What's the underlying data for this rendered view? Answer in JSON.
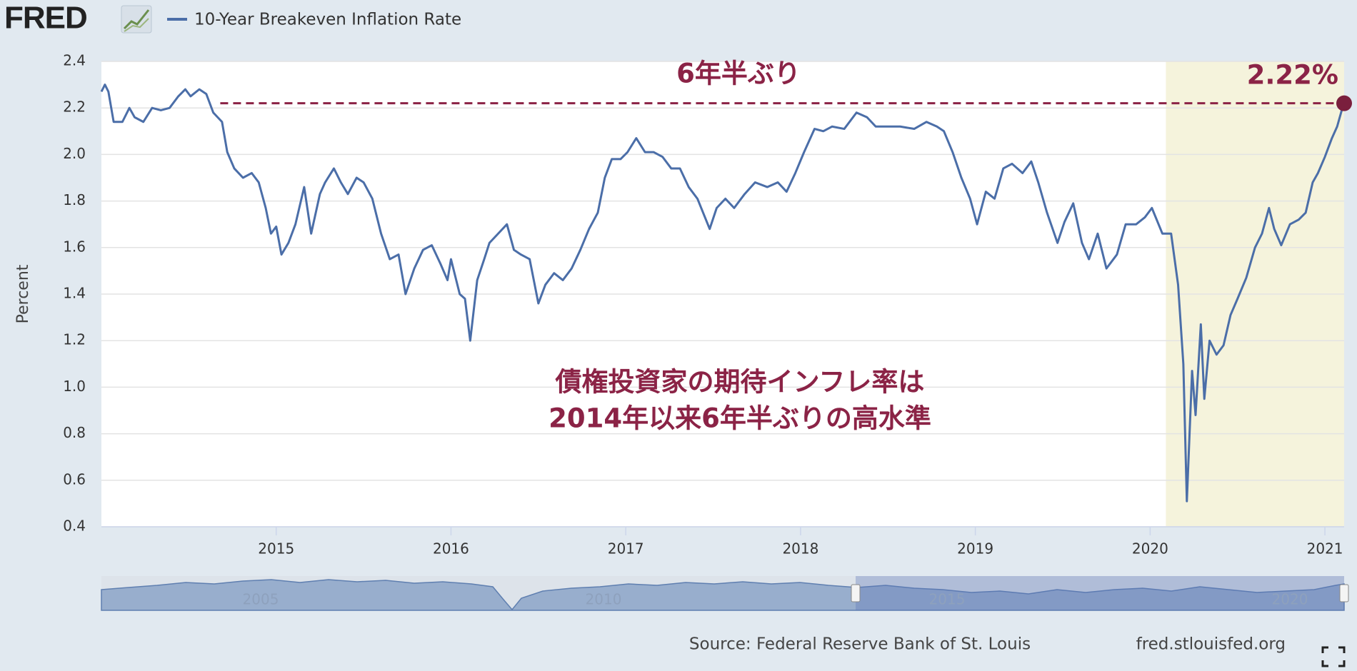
{
  "chart_data": {
    "type": "line",
    "logo": "FRED",
    "y_label": "Percent",
    "source": "Source: Federal Reserve Bank of St. Louis",
    "site": "fred.stlouisfed.org",
    "annotations": [
      "6年半ぶり",
      "2.22%",
      "債権投資家の期待インフレ率は",
      "2014年以来6年半ぶりの高水準"
    ],
    "reference_line": {
      "value": 2.22,
      "from": 2014.68,
      "color": "#8b2346"
    },
    "shaded_range": [
      2020.09,
      2021.11
    ],
    "shade_color": "#f5f3dc",
    "navigator_labels": [
      "2005",
      "2010",
      "2015",
      "2020"
    ],
    "xlim": [
      2014.0,
      2021.11
    ],
    "xticks": [
      2015,
      2016,
      2017,
      2018,
      2019,
      2020,
      2021
    ],
    "ylim": [
      0.4,
      2.4
    ],
    "yticks": [
      0.4,
      0.6,
      0.8,
      {
        "value": 1,
        "label": "1.0"
      },
      1.2,
      1.4,
      1.6,
      1.8,
      {
        "value": 2,
        "label": "2.0"
      },
      2.2,
      2.4
    ],
    "grid": true,
    "x": [
      2014.0,
      2014.02,
      2014.04,
      2014.07,
      2014.12,
      2014.16,
      2014.19,
      2014.24,
      2014.29,
      2014.34,
      2014.39,
      2014.44,
      2014.48,
      2014.51,
      2014.56,
      2014.6,
      2014.64,
      2014.69,
      2014.72,
      2014.76,
      2014.81,
      2014.86,
      2014.9,
      2014.94,
      2014.97,
      2015.0,
      2015.03,
      2015.07,
      2015.11,
      2015.16,
      2015.2,
      2015.25,
      2015.28,
      2015.33,
      2015.37,
      2015.41,
      2015.46,
      2015.5,
      2015.55,
      2015.6,
      2015.65,
      2015.7,
      2015.74,
      2015.79,
      2015.84,
      2015.89,
      2015.94,
      2015.98,
      2016.0,
      2016.05,
      2016.08,
      2016.11,
      2016.15,
      2016.19,
      2016.22,
      2016.27,
      2016.32,
      2016.36,
      2016.4,
      2016.45,
      2016.5,
      2016.54,
      2016.59,
      2016.64,
      2016.69,
      2016.74,
      2016.79,
      2016.84,
      2016.88,
      2016.92,
      2016.97,
      2017.01,
      2017.06,
      2017.11,
      2017.16,
      2017.21,
      2017.26,
      2017.31,
      2017.36,
      2017.41,
      2017.48,
      2017.52,
      2017.57,
      2017.62,
      2017.68,
      2017.74,
      2017.81,
      2017.87,
      2017.92,
      2017.97,
      2018.02,
      2018.08,
      2018.13,
      2018.18,
      2018.25,
      2018.32,
      2018.38,
      2018.43,
      2018.5,
      2018.57,
      2018.65,
      2018.72,
      2018.78,
      2018.82,
      2018.87,
      2018.92,
      2018.97,
      2019.01,
      2019.06,
      2019.11,
      2019.16,
      2019.21,
      2019.27,
      2019.32,
      2019.36,
      2019.41,
      2019.47,
      2019.51,
      2019.56,
      2019.61,
      2019.65,
      2019.7,
      2019.75,
      2019.81,
      2019.86,
      2019.92,
      2019.97,
      2020.01,
      2020.07,
      2020.12,
      2020.16,
      2020.19,
      2020.21,
      2020.24,
      2020.26,
      2020.29,
      2020.31,
      2020.34,
      2020.38,
      2020.42,
      2020.46,
      2020.5,
      2020.55,
      2020.6,
      2020.64,
      2020.68,
      2020.71,
      2020.75,
      2020.8,
      2020.85,
      2020.89,
      2020.93,
      2020.96,
      2021.0,
      2021.04,
      2021.07,
      2021.1,
      2021.11
    ],
    "series": [
      {
        "name": "10-Year Breakeven Inflation Rate",
        "color": "#4b6ea8",
        "values": [
          2.27,
          2.3,
          2.27,
          2.14,
          2.14,
          2.2,
          2.16,
          2.14,
          2.2,
          2.19,
          2.2,
          2.25,
          2.28,
          2.25,
          2.28,
          2.26,
          2.18,
          2.14,
          2.01,
          1.94,
          1.9,
          1.92,
          1.88,
          1.77,
          1.66,
          1.69,
          1.57,
          1.62,
          1.7,
          1.86,
          1.66,
          1.83,
          1.88,
          1.94,
          1.88,
          1.83,
          1.9,
          1.88,
          1.81,
          1.66,
          1.55,
          1.57,
          1.4,
          1.51,
          1.59,
          1.61,
          1.53,
          1.46,
          1.55,
          1.4,
          1.38,
          1.2,
          1.46,
          1.55,
          1.62,
          1.66,
          1.7,
          1.59,
          1.57,
          1.55,
          1.36,
          1.44,
          1.49,
          1.46,
          1.51,
          1.59,
          1.68,
          1.75,
          1.9,
          1.98,
          1.98,
          2.01,
          2.07,
          2.01,
          2.01,
          1.99,
          1.94,
          1.94,
          1.86,
          1.81,
          1.68,
          1.77,
          1.81,
          1.77,
          1.83,
          1.88,
          1.86,
          1.88,
          1.84,
          1.92,
          2.01,
          2.11,
          2.1,
          2.12,
          2.11,
          2.18,
          2.16,
          2.12,
          2.12,
          2.12,
          2.11,
          2.14,
          2.12,
          2.1,
          2.01,
          1.9,
          1.81,
          1.7,
          1.84,
          1.81,
          1.94,
          1.96,
          1.92,
          1.97,
          1.88,
          1.75,
          1.62,
          1.71,
          1.79,
          1.62,
          1.55,
          1.66,
          1.51,
          1.57,
          1.7,
          1.7,
          1.73,
          1.77,
          1.66,
          1.66,
          1.44,
          1.1,
          0.51,
          1.07,
          0.88,
          1.27,
          0.95,
          1.2,
          1.14,
          1.18,
          1.31,
          1.38,
          1.47,
          1.6,
          1.66,
          1.77,
          1.68,
          1.61,
          1.7,
          1.72,
          1.75,
          1.88,
          1.92,
          1.99,
          2.07,
          2.12,
          2.2,
          2.22
        ]
      }
    ]
  }
}
